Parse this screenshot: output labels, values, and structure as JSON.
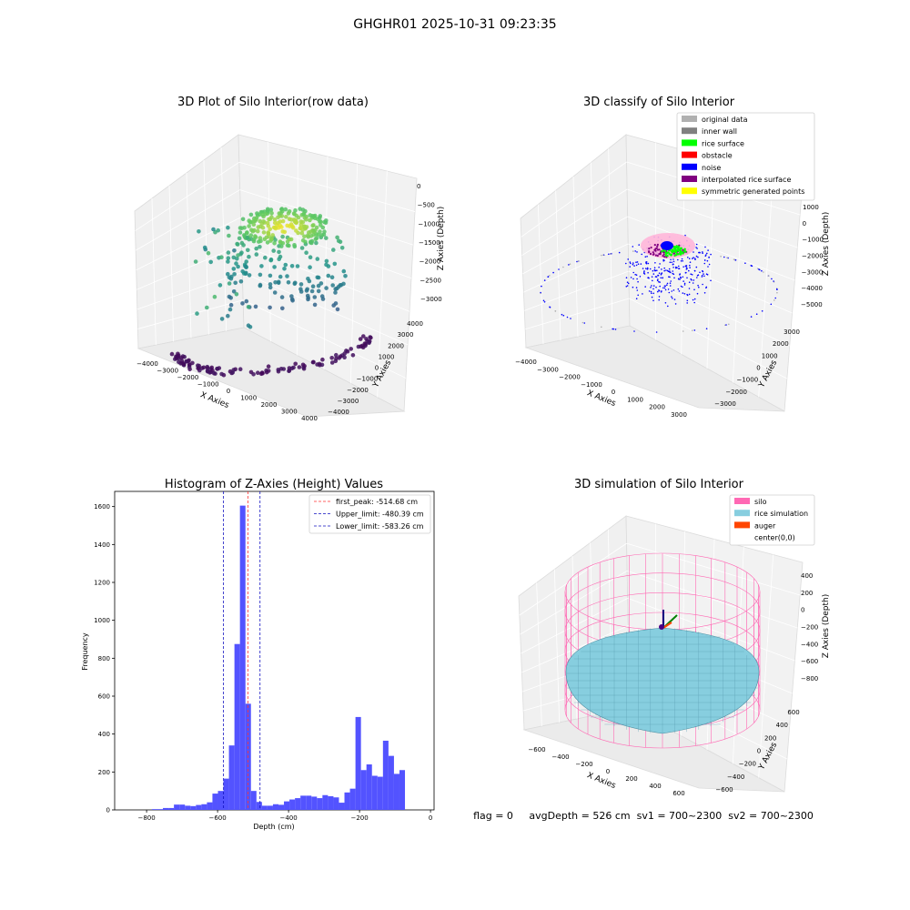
{
  "page": {
    "suptitle": "GHGHR01 2025-10-31 09:23:35",
    "status_text": "flag = 0     avgDepth = 526 cm  sv1 = 700~2300  sv2 = 700~2300"
  },
  "colors": {
    "hist_bar": "#5050ff",
    "first_peak": "#ff3030",
    "limits": "#1010c0",
    "silo": "#ff69b4",
    "rice": "#87cedf",
    "auger": "#ff4500"
  },
  "chart_data": [
    {
      "type": "scatter",
      "title": "3D Plot of Silo Interior(row data)",
      "projection": "3d",
      "xlabel": "X Axies",
      "ylabel": "Y Axies",
      "zlabel": "Z Axies (Depth)",
      "x_ticks": [
        "−4000",
        "−3000",
        "−2000",
        "−1000",
        "0",
        "1000",
        "2000",
        "3000",
        "4000"
      ],
      "y_ticks": [
        "−4000",
        "−3000",
        "−2000",
        "−1000",
        "0",
        "1000",
        "2000",
        "3000",
        "4000"
      ],
      "z_ticks": [
        "0",
        "−500",
        "−1000",
        "−1500",
        "−2000",
        "−2500",
        "−3000"
      ],
      "xlim": [
        -4000,
        4000
      ],
      "ylim": [
        -4000,
        4000
      ],
      "zlim": [
        -3300,
        0
      ],
      "colormap": "viridis (color by depth)",
      "grid": true
    },
    {
      "type": "scatter",
      "title": "3D classify of Silo Interior",
      "projection": "3d",
      "xlabel": "X Axies",
      "ylabel": "Y Axies",
      "zlabel": "Z Axies (Depth)",
      "x_ticks": [
        "−4000",
        "−3000",
        "−2000",
        "−1000",
        "0",
        "1000",
        "2000",
        "3000"
      ],
      "y_ticks": [
        "−3000",
        "−2000",
        "−1000",
        "0",
        "1000",
        "2000",
        "3000"
      ],
      "z_ticks": [
        "1000",
        "0",
        "−1000",
        "−2000",
        "−3000",
        "−4000",
        "−5000"
      ],
      "legend_position": "top-right",
      "legend": [
        {
          "label": "original data",
          "color": "#b0b0b0"
        },
        {
          "label": "inner wall",
          "color": "#808080"
        },
        {
          "label": "rice surface",
          "color": "#00ff00"
        },
        {
          "label": "obstacle",
          "color": "#ff0000"
        },
        {
          "label": "noise",
          "color": "#0000ff"
        },
        {
          "label": "interpolated rice surface",
          "color": "#800080"
        },
        {
          "label": "symmetric generated points",
          "color": "#ffff00"
        }
      ],
      "grid": true
    },
    {
      "type": "bar",
      "title": "Histogram of Z-Axies (Height) Values",
      "xlabel": "Depth (cm)",
      "ylabel": "Frequency",
      "xlim": [
        -890,
        10
      ],
      "ylim": [
        0,
        1680
      ],
      "x_ticks": [
        -800,
        -600,
        -400,
        -200,
        0
      ],
      "x_tick_labels": [
        "−800",
        "−600",
        "−400",
        "−200",
        "0"
      ],
      "y_ticks": [
        0,
        200,
        400,
        600,
        800,
        1000,
        1200,
        1400,
        1600
      ],
      "bin_start": -785,
      "bin_width": 15.5,
      "values": [
        4,
        4,
        10,
        10,
        28,
        28,
        22,
        20,
        26,
        30,
        40,
        86,
        100,
        165,
        340,
        875,
        1605,
        560,
        100,
        42,
        22,
        22,
        30,
        27,
        45,
        55,
        62,
        75,
        75,
        70,
        62,
        78,
        72,
        66,
        38,
        92,
        112,
        490,
        210,
        240,
        180,
        175,
        365,
        285,
        190,
        210
      ],
      "vlines": [
        {
          "label": "first_peak: -514.68 cm",
          "x": -514.68,
          "style": "first_peak"
        },
        {
          "label": "Upper_limit: -480.39 cm",
          "x": -480.39,
          "style": "limits"
        },
        {
          "label": "Lower_limit: -583.26 cm",
          "x": -583.26,
          "style": "limits"
        }
      ],
      "legend_position": "top-right",
      "grid": false
    },
    {
      "type": "area",
      "title": "3D simulation of Silo Interior",
      "projection": "3d",
      "xlabel": "X Axies",
      "ylabel": "Y Axies",
      "zlabel": "Z Axies (Depth)",
      "x_ticks": [
        "−600",
        "−400",
        "−200",
        "0",
        "200",
        "400",
        "600"
      ],
      "y_ticks": [
        "−600",
        "−400",
        "−200",
        "0",
        "200",
        "400",
        "600"
      ],
      "z_ticks": [
        "400",
        "200",
        "0",
        "−200",
        "−400",
        "−600",
        "−800"
      ],
      "legend_position": "top-right",
      "legend": [
        {
          "label": "silo",
          "color": "#ff69b4"
        },
        {
          "label": "rice simulation",
          "color": "#87cedf"
        },
        {
          "label": "auger",
          "color": "#ff4500"
        },
        {
          "label": "center(0,0)",
          "color": ""
        }
      ],
      "grid": true
    }
  ]
}
